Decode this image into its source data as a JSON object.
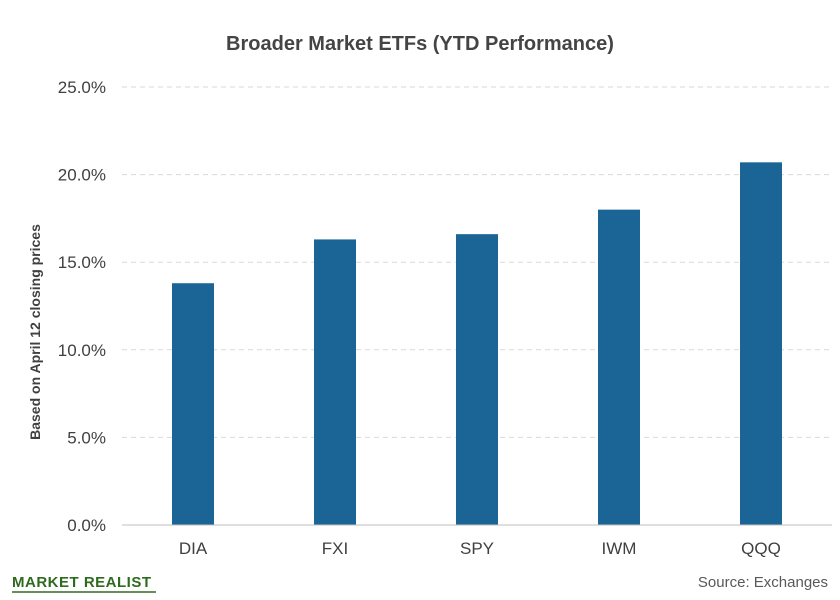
{
  "chart_data": {
    "type": "bar",
    "title": "Broader  Market  ETFs (YTD Performance)",
    "xlabel": "",
    "ylabel": "Based on April 12 closing prices",
    "categories": [
      "DIA",
      "FXI",
      "SPY",
      "IWM",
      "QQQ"
    ],
    "values": [
      13.8,
      16.3,
      16.6,
      18.0,
      20.7
    ],
    "ylim": [
      0,
      25
    ],
    "yticks": [
      0,
      5,
      10,
      15,
      20,
      25
    ],
    "ytick_labels": [
      "0.0%",
      "5.0%",
      "10.0%",
      "15.0%",
      "20.0%",
      "25.0%"
    ],
    "grid": true,
    "bar_color": "#1a6496"
  },
  "footer": {
    "logo": "MARKET REALIST",
    "source": "Source:  Exchanges"
  }
}
